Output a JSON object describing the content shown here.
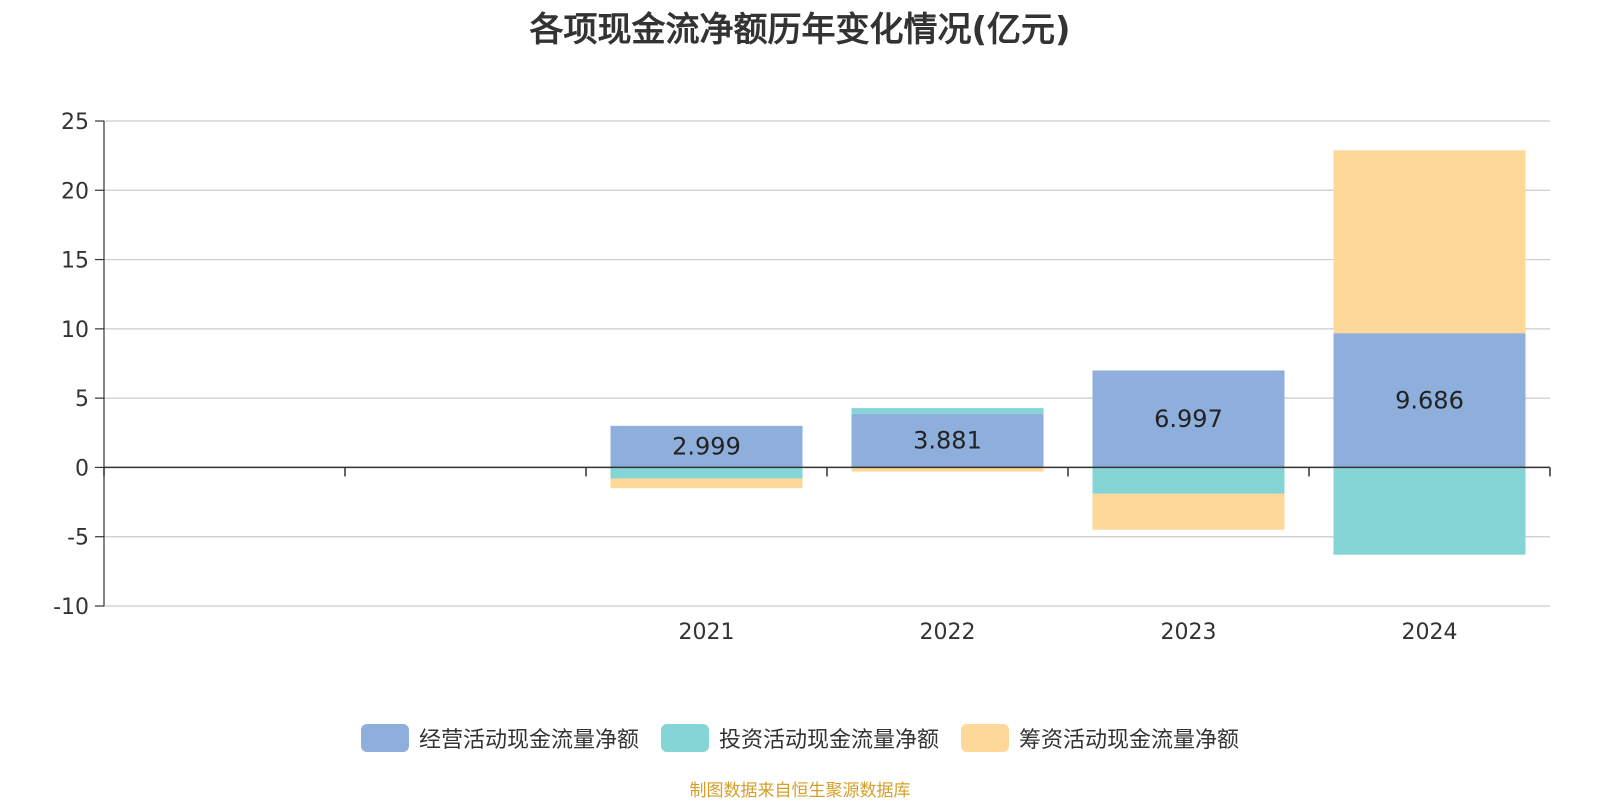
{
  "title": "各项现金流净额历年变化情况(亿元)",
  "source": "制图数据来自恒生聚源数据库",
  "source_color": "#d4a02a",
  "chart_data": {
    "type": "bar",
    "stacked": true,
    "title": "各项现金流净额历年变化情况(亿元)",
    "xlabel": "",
    "ylabel": "",
    "ylim": [
      -10,
      25
    ],
    "yticks": [
      25,
      20,
      15,
      10,
      5,
      0,
      -5,
      -10
    ],
    "grid": true,
    "legend_position": "bottom-center",
    "slots": 6,
    "categories": [
      "2021",
      "2022",
      "2023",
      "2024"
    ],
    "series": [
      {
        "name": "经营活动现金流量净额",
        "color": "#8eaedc",
        "values": [
          2.999,
          3.881,
          6.997,
          9.686
        ],
        "labels": [
          "2.999",
          "3.881",
          "6.997",
          "9.686"
        ]
      },
      {
        "name": "投资活动现金流量净额",
        "color": "#86d5d6",
        "values": [
          -0.8,
          0.4,
          -1.9,
          -6.3
        ]
      },
      {
        "name": "筹资活动现金流量净额",
        "color": "#fdd899",
        "values": [
          -0.7,
          -0.3,
          -2.6,
          13.2
        ]
      }
    ]
  }
}
